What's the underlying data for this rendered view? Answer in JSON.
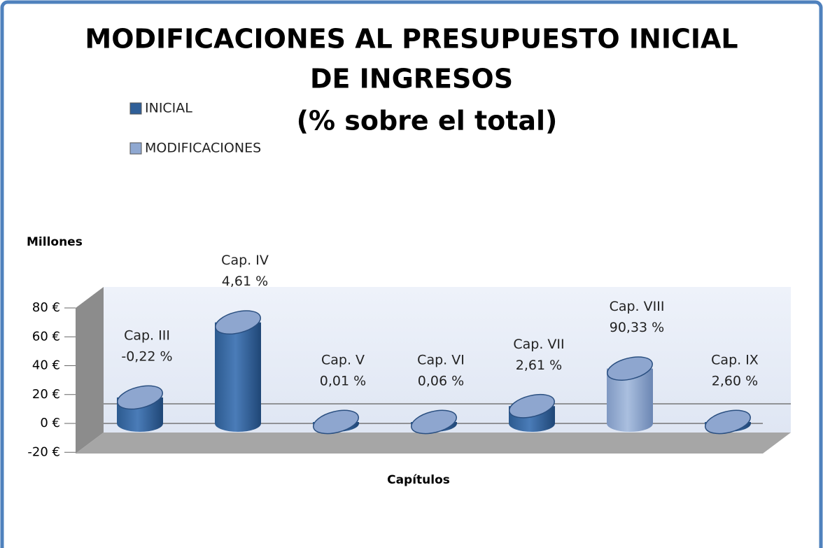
{
  "chart_data": {
    "type": "bar3d",
    "title": [
      "MODIFICACIONES AL PRESUPUESTO INICIAL",
      "DE INGRESOS"
    ],
    "subtitle": "(% sobre el total)",
    "y_label": "Millones",
    "x_label": "Capítulos",
    "categories": [
      "Cap. III",
      "Cap. IV",
      "Cap. V",
      "Cap. VI",
      "Cap. VII",
      "Cap. VIII",
      "Cap. IX"
    ],
    "annotations": [
      "-0,22 %",
      "4,61 %",
      "0,01 %",
      "0,06 %",
      "2,61 %",
      "90,33 %",
      "2,60 %"
    ],
    "series": [
      {
        "name": "INICIAL",
        "color": "#2f5f98",
        "values": [
          18,
          70,
          1,
          1,
          12,
          null,
          1
        ]
      },
      {
        "name": "MODIFICACIONES",
        "color": "#8fa8d1",
        "values": [
          null,
          null,
          null,
          null,
          null,
          38,
          null
        ]
      }
    ],
    "ylim": [
      -20,
      80
    ],
    "yticks": [
      {
        "value": -20,
        "label": "-20 €"
      },
      {
        "value": 0,
        "label": "0 €"
      },
      {
        "value": 20,
        "label": "20 €"
      },
      {
        "value": 40,
        "label": "40 €"
      },
      {
        "value": 60,
        "label": "60 €"
      },
      {
        "value": 80,
        "label": "80 €"
      }
    ],
    "legend": "top-left"
  }
}
